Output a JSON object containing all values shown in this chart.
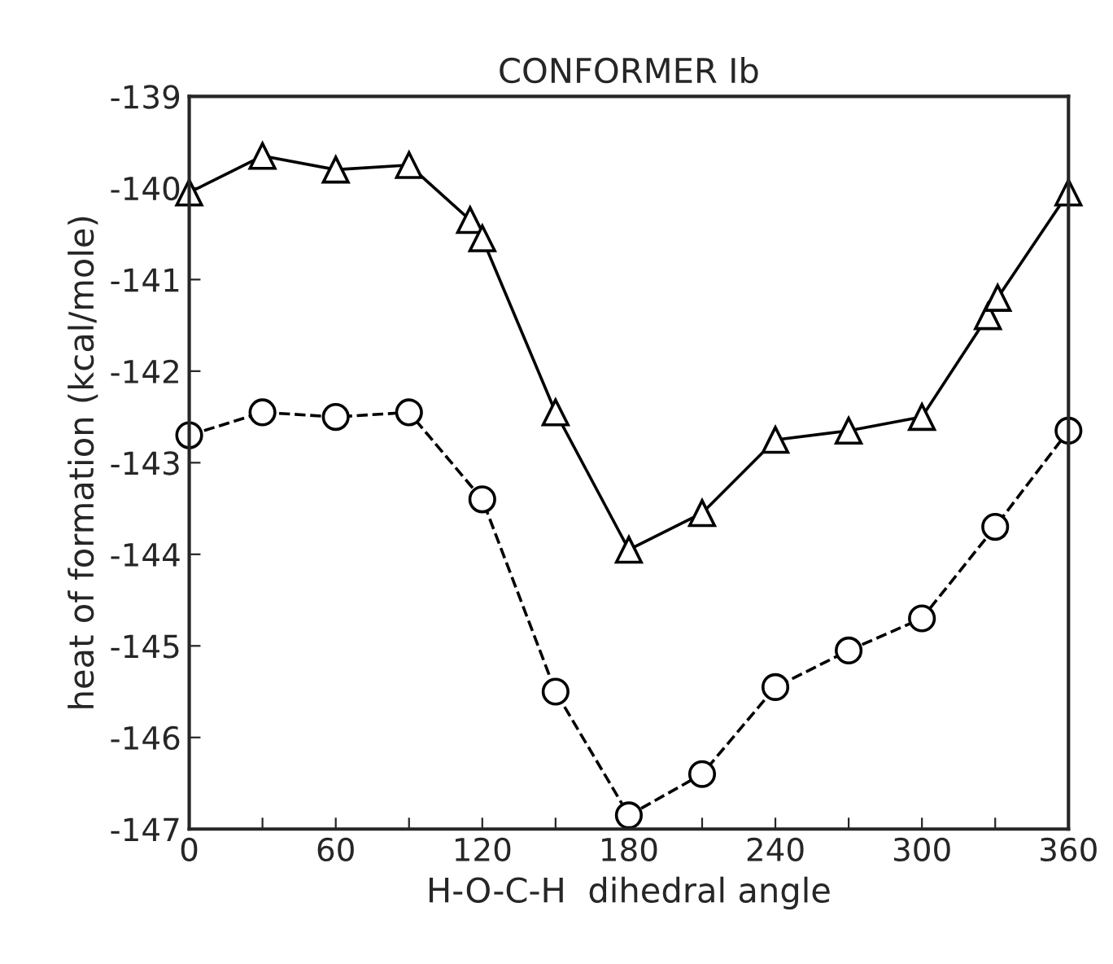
{
  "chart_data": {
    "type": "line",
    "title": "CONFORMER Ib",
    "xlabel": "H-O-C-H  dihedral angle",
    "ylabel": "heat of formation (kcal/mole)",
    "xlim": [
      0,
      360
    ],
    "ylim": [
      -147,
      -139
    ],
    "xticks": [
      0,
      {
        "value": 30,
        "label": null
      },
      60,
      {
        "value": 90,
        "label": null
      },
      120,
      {
        "value": 150,
        "label": null
      },
      180,
      {
        "value": 210,
        "label": null
      },
      240,
      {
        "value": 270,
        "label": null
      },
      300,
      {
        "value": 330,
        "label": null
      },
      360
    ],
    "yticks": [
      -147,
      -146,
      -145,
      -144,
      -143,
      -142,
      -141,
      -140,
      -139
    ],
    "grid": false,
    "legend": false,
    "series": [
      {
        "color": "#000000",
        "marker": "triangle",
        "line_style": "solid",
        "x": [
          0,
          30,
          60,
          90,
          115,
          120,
          150,
          180,
          210,
          240,
          270,
          300,
          327,
          331,
          360
        ],
        "values": [
          -140.05,
          -139.65,
          -139.8,
          -139.75,
          -140.35,
          -140.55,
          -142.45,
          -143.95,
          -143.55,
          -142.75,
          -142.65,
          -142.5,
          -141.4,
          -141.2,
          -140.05
        ]
      },
      {
        "color": "#000000",
        "marker": "circle",
        "line_style": "dashed",
        "x": [
          0,
          30,
          60,
          90,
          120,
          150,
          180,
          210,
          240,
          270,
          300,
          330,
          360
        ],
        "values": [
          -142.7,
          -142.45,
          -142.5,
          -142.45,
          -143.4,
          -145.5,
          -146.85,
          -146.4,
          -145.45,
          -145.05,
          -144.7,
          -143.7,
          -142.65
        ]
      }
    ]
  }
}
